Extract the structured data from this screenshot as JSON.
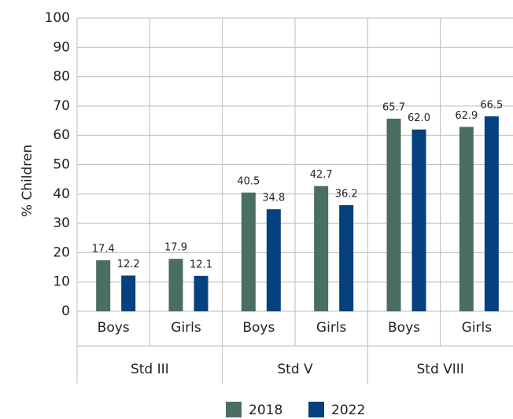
{
  "chart_data": {
    "type": "bar",
    "y_label": "% Children",
    "categories": [
      "Boys",
      "Girls",
      "Boys",
      "Girls",
      "Boys",
      "Girls"
    ],
    "groups": [
      "Std III",
      "Std V",
      "Std VIII"
    ],
    "series": [
      {
        "name": "2018",
        "color": "#4a6e61",
        "values": [
          17.4,
          17.9,
          40.5,
          42.7,
          65.7,
          62.9
        ],
        "value_labels": [
          "17.4",
          "17.9",
          "40.5",
          "42.7",
          "65.7",
          "62.9"
        ]
      },
      {
        "name": "2022",
        "color": "#05407f",
        "values": [
          12.2,
          12.1,
          34.8,
          36.2,
          62,
          66.5
        ],
        "value_labels": [
          "12.2",
          "12.1",
          "34.8",
          "36.2",
          "62.0",
          "66.5"
        ]
      }
    ],
    "ylim": [
      0,
      100
    ],
    "yticks": [
      0,
      10,
      20,
      30,
      40,
      50,
      60,
      70,
      80,
      90,
      100
    ],
    "grid": true
  }
}
